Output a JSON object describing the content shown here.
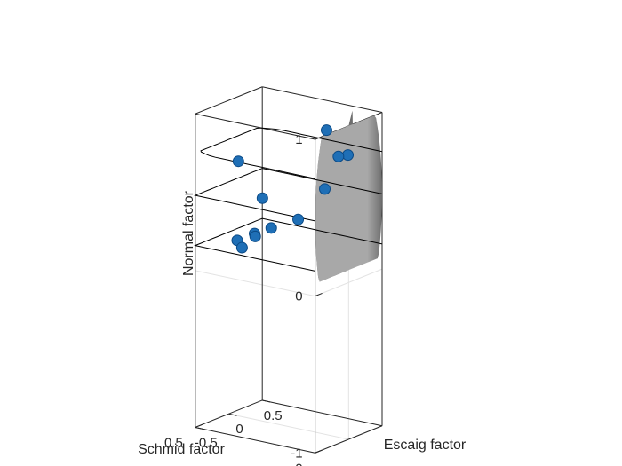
{
  "chart_data": {
    "type": "scatter",
    "view": "3d",
    "surface": "sphere",
    "grid": true,
    "xlabel": "Schmid factor",
    "ylabel": "Escaig factor",
    "zlabel": "Normal factor",
    "xlim": [
      0,
      0.5
    ],
    "ylim": [
      -0.5,
      0.5
    ],
    "zlim": [
      -1,
      1
    ],
    "xticks": [
      {
        "value": 0,
        "label": "0"
      },
      {
        "value": 0.5,
        "label": "0.5"
      }
    ],
    "yticks": [
      {
        "value": -0.5,
        "label": "-0.5"
      },
      {
        "value": 0,
        "label": "0"
      },
      {
        "value": 0.5,
        "label": "0.5"
      }
    ],
    "zticks": [
      {
        "value": -1,
        "label": "-1"
      },
      {
        "value": 0,
        "label": "0"
      },
      {
        "value": 1,
        "label": "1"
      }
    ],
    "colors": {
      "marker": "#1F6FB6",
      "marker_edge": "#0B4A86",
      "sphere_light": "#A8A8A8",
      "sphere_shadow": "#6E6E6E",
      "grid": "#E3E3E3",
      "box": "#262626",
      "contour": "#000000"
    },
    "points": [
      {
        "x": 0.39,
        "y": -0.25,
        "z": 0.69
      },
      {
        "x": 0.07,
        "y": 0.24,
        "z": 0.75
      },
      {
        "x": 0.19,
        "y": 0.35,
        "z": 0.85
      },
      {
        "x": 0.16,
        "y": 0.42,
        "z": 0.68
      },
      {
        "x": 0.34,
        "y": -0.07,
        "z": 0.44
      },
      {
        "x": 0.2,
        "y": 0.36,
        "z": 0.47
      },
      {
        "x": 0.42,
        "y": -0.16,
        "z": 0.16
      },
      {
        "x": 0.4,
        "y": -0.16,
        "z": 0.12
      },
      {
        "x": 0.44,
        "y": 0.17,
        "z": 0.14
      },
      {
        "x": 0.44,
        "y": 0.18,
        "z": 0.12
      },
      {
        "x": 0.39,
        "y": 0.24,
        "z": 0.18
      },
      {
        "x": 0.3,
        "y": 0.32,
        "z": 0.25
      }
    ]
  }
}
